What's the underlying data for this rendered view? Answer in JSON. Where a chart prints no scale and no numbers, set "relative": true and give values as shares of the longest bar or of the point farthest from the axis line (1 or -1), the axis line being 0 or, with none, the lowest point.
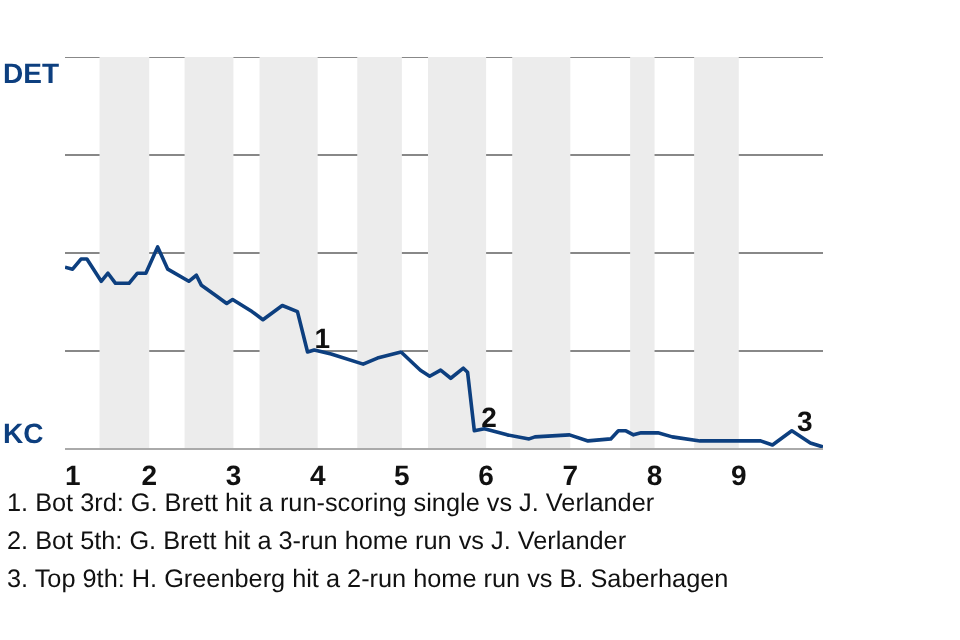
{
  "chart_data": {
    "type": "line",
    "relative": true,
    "x": [
      1,
      1.09,
      1.19,
      1.26,
      1.43,
      1.51,
      1.6,
      1.76,
      1.86,
      1.96,
      2.1,
      2.22,
      2.47,
      2.56,
      2.62,
      2.79,
      2.92,
      2.99,
      3.22,
      3.35,
      3.58,
      3.76,
      3.88,
      3.96,
      4.16,
      4.54,
      4.71,
      4.99,
      5.22,
      5.33,
      5.46,
      5.58,
      5.73,
      5.78,
      5.86,
      5.98,
      6.25,
      6.51,
      6.58,
      6.99,
      7.21,
      7.48,
      7.57,
      7.66,
      7.75,
      7.84,
      8.04,
      8.21,
      8.54,
      9.26,
      9.4,
      9.63,
      9.85,
      10
    ],
    "series": [
      {
        "color": "#0d3f7f",
        "values": [
          0.9,
          0.89,
          0.94,
          0.94,
          0.83,
          0.87,
          0.82,
          0.82,
          0.87,
          0.87,
          1,
          0.89,
          0.83,
          0.86,
          0.81,
          0.76,
          0.72,
          0.74,
          0.68,
          0.64,
          0.71,
          0.68,
          0.48,
          0.49,
          0.47,
          0.42,
          0.45,
          0.48,
          0.39,
          0.36,
          0.39,
          0.35,
          0.4,
          0.38,
          0.09,
          0.1,
          0.07,
          0.05,
          0.06,
          0.07,
          0.04,
          0.05,
          0.09,
          0.09,
          0.07,
          0.08,
          0.08,
          0.06,
          0.04,
          0.04,
          0.02,
          0.09,
          0.03,
          0.01
        ]
      }
    ],
    "xlim": [
      1,
      10
    ],
    "xticks": [
      1,
      2,
      3,
      4,
      5,
      6,
      7,
      8,
      9
    ],
    "tick_labels": "x",
    "ref_lines": [
      {
        "axis": "y",
        "value": 0.485,
        "color": "#888888"
      },
      {
        "axis": "y",
        "value": 0.97,
        "color": "#888888"
      },
      {
        "axis": "y",
        "value": 1.455,
        "color": "#888888"
      },
      {
        "axis": "y",
        "value": 1.94,
        "color": "#888888"
      }
    ],
    "line_style": "solid",
    "bands": [
      {
        "axis": "x",
        "from": 1.41,
        "to": 2,
        "color": "#ececec"
      },
      {
        "axis": "x",
        "from": 2.42,
        "to": 3,
        "color": "#ececec"
      },
      {
        "axis": "x",
        "from": 3.31,
        "to": 4,
        "color": "#ececec"
      },
      {
        "axis": "x",
        "from": 4.47,
        "to": 5,
        "color": "#ececec"
      },
      {
        "axis": "x",
        "from": 5.31,
        "to": 6,
        "color": "#ececec"
      },
      {
        "axis": "x",
        "from": 6.31,
        "to": 7,
        "color": "#ececec"
      },
      {
        "axis": "x",
        "from": 7.71,
        "to": 8,
        "color": "#ececec"
      },
      {
        "axis": "x",
        "from": 8.47,
        "to": 9,
        "color": "#ececec"
      }
    ],
    "annotations": [
      "DET",
      "KC",
      {
        "text": "1",
        "x": 3.89,
        "y": 0.48
      },
      {
        "text": "2",
        "x": 5.87,
        "y": 0.09
      },
      {
        "text": "3",
        "x": 9.83,
        "y": 0.03
      },
      "1. Bot 3rd: G. Brett hit a run-scoring single vs J. Verlander",
      "2. Bot 5th: G. Brett hit a 3-run home run vs J. Verlander",
      "3. Top 9th: H. Greenberg hit a 2-run home run vs B. Saberhagen"
    ]
  }
}
